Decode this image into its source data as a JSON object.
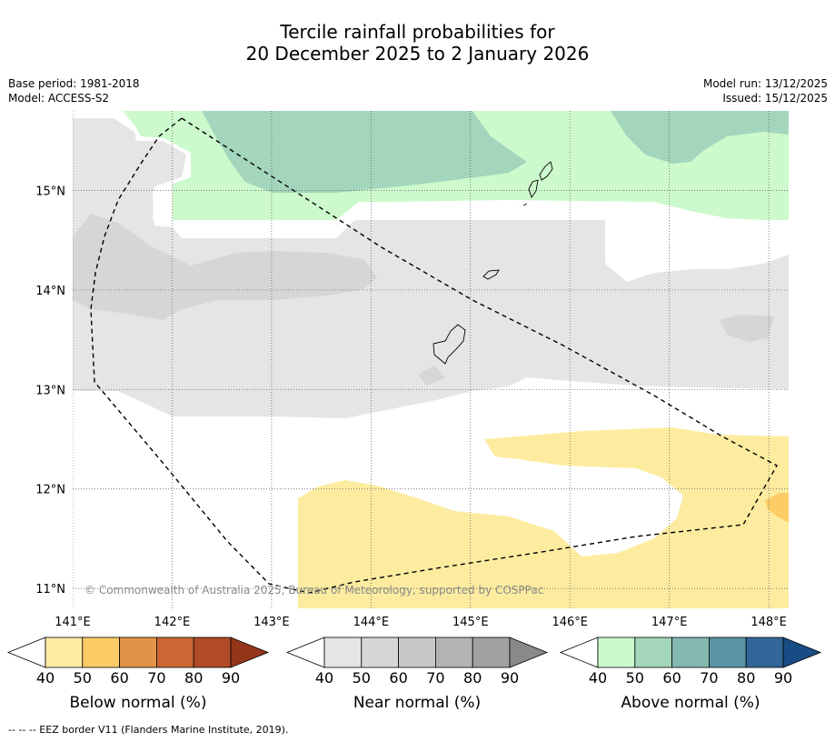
{
  "title_line1": "Tercile rainfall probabilities for",
  "title_line2": "20 December 2025 to 2 January 2026",
  "meta_left": [
    "Base period: 1981-2018",
    "Model: ACCESS-S2"
  ],
  "meta_right": [
    "Model run: 13/12/2025",
    "Issued: 15/12/2025"
  ],
  "map": {
    "lon_ticks": [
      "141°E",
      "142°E",
      "143°E",
      "144°E",
      "145°E",
      "146°E",
      "147°E",
      "148°E"
    ],
    "lat_ticks": [
      "15°N",
      "14°N",
      "13°N",
      "12°N",
      "11°N"
    ],
    "lon_range": [
      141.0,
      148.2
    ],
    "lat_range": [
      10.8,
      15.8
    ],
    "copyright": "© Commonwealth of Australia 2025, Bureau of Meteorology, supported by COSPPac"
  },
  "colorbars": [
    {
      "title": "Below normal (%)",
      "ticks": [
        "40",
        "50",
        "60",
        "70",
        "80",
        "90"
      ],
      "colors": [
        "#ffffff",
        "#fdeca0",
        "#fdcc66",
        "#e19448",
        "#cc6633",
        "#b04a27",
        "#953519"
      ]
    },
    {
      "title": "Near normal (%)",
      "ticks": [
        "40",
        "50",
        "60",
        "70",
        "80",
        "90"
      ],
      "colors": [
        "#ffffff",
        "#e5e5e5",
        "#d6d6d6",
        "#c8c8c8",
        "#b3b3b3",
        "#a1a1a1",
        "#898989"
      ]
    },
    {
      "title": "Above normal (%)",
      "ticks": [
        "40",
        "50",
        "60",
        "70",
        "80",
        "90"
      ],
      "colors": [
        "#ffffff",
        "#ccfacc",
        "#a3d6bc",
        "#85b8b0",
        "#5a94a3",
        "#336699",
        "#184c84"
      ]
    }
  ],
  "footnote": "--  --  -- EEZ border V11 (Flanders Marine Institute, 2019)."
}
